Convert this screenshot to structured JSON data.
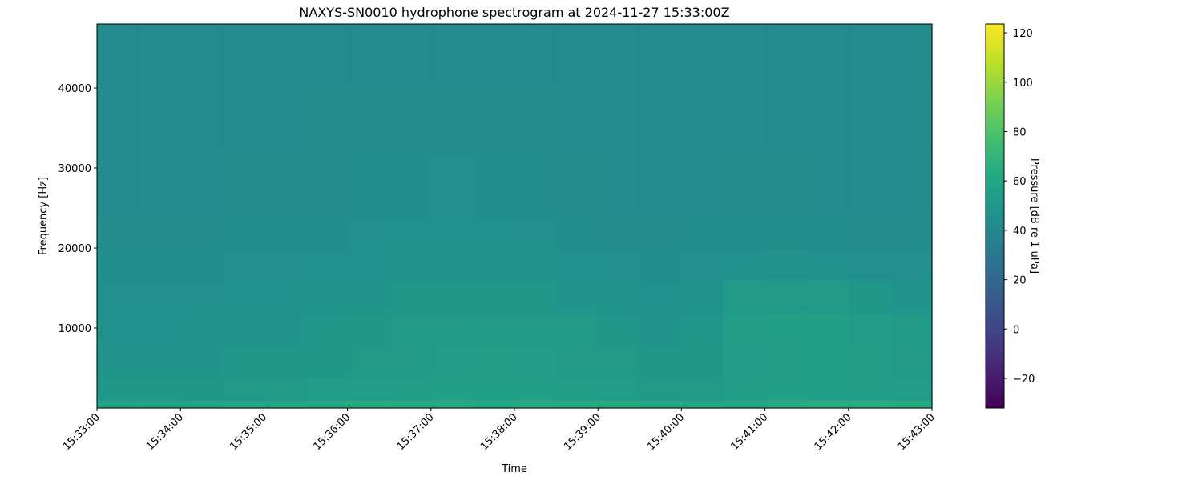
{
  "chart_data": {
    "type": "heatmap",
    "title": "NAXYS-SN0010 hydrophone spectrogram at 2024-11-27 15:33:00Z",
    "xlabel": "Time",
    "ylabel": "Frequency [Hz]",
    "colorbar_label": "Pressure [dB re 1 uPa]",
    "colormap": "viridis",
    "clim": [
      -32,
      123.6
    ],
    "colorbar_ticks": [
      -20,
      0,
      20,
      40,
      60,
      80,
      100,
      120
    ],
    "ylim": [
      0,
      48000
    ],
    "yticks": [
      10000,
      20000,
      30000,
      40000
    ],
    "xlim": [
      "15:33:00",
      "15:43:00"
    ],
    "xticks": [
      "15:33:00",
      "15:34:00",
      "15:35:00",
      "15:36:00",
      "15:37:00",
      "15:38:00",
      "15:39:00",
      "15:40:00",
      "15:41:00",
      "15:42:00",
      "15:43:00"
    ],
    "time_bin_seconds": 30,
    "freq_edges": [
      0,
      1000,
      4000,
      8000,
      12000,
      16000,
      20000,
      24000,
      32000,
      40000,
      48000
    ],
    "values_db": [
      [
        58,
        58,
        59,
        60,
        61,
        62,
        63,
        63,
        63,
        62,
        63,
        63,
        63,
        62,
        61,
        62,
        63,
        64,
        64,
        63
      ],
      [
        50,
        50,
        50,
        51,
        52,
        53,
        53,
        54,
        55,
        55,
        55,
        54,
        53,
        52,
        52,
        54,
        55,
        55,
        54,
        53
      ],
      [
        48,
        48,
        48,
        49,
        50,
        50,
        51,
        52,
        53,
        54,
        53,
        52,
        51,
        50,
        50,
        53,
        54,
        55,
        54,
        52
      ],
      [
        46,
        46,
        47,
        47,
        48,
        49,
        50,
        51,
        52,
        52,
        52,
        51,
        49,
        48,
        49,
        54,
        55,
        55,
        53,
        51
      ],
      [
        45,
        45,
        45,
        46,
        46,
        47,
        48,
        49,
        50,
        50,
        49,
        48,
        47,
        46,
        47,
        52,
        52,
        52,
        50,
        48
      ],
      [
        44,
        44,
        44,
        45,
        45,
        46,
        46,
        47,
        48,
        48,
        47,
        46,
        45,
        44,
        45,
        46,
        47,
        46,
        45,
        45
      ],
      [
        43,
        43,
        43,
        44,
        44,
        44,
        45,
        46,
        46,
        46,
        45,
        44,
        43,
        43,
        44,
        44,
        44,
        44,
        43,
        43
      ],
      [
        42,
        42,
        42,
        43,
        43,
        43,
        44,
        44,
        45,
        44,
        44,
        43,
        42,
        42,
        42,
        43,
        43,
        42,
        42,
        42
      ],
      [
        42,
        42,
        42,
        42,
        42,
        43,
        43,
        43,
        43,
        43,
        43,
        42,
        42,
        42,
        42,
        42,
        42,
        42,
        42,
        42
      ],
      [
        42,
        42,
        42,
        42,
        42,
        42,
        42,
        42,
        42,
        42,
        42,
        42,
        42,
        42,
        42,
        42,
        42,
        42,
        42,
        42
      ]
    ]
  }
}
